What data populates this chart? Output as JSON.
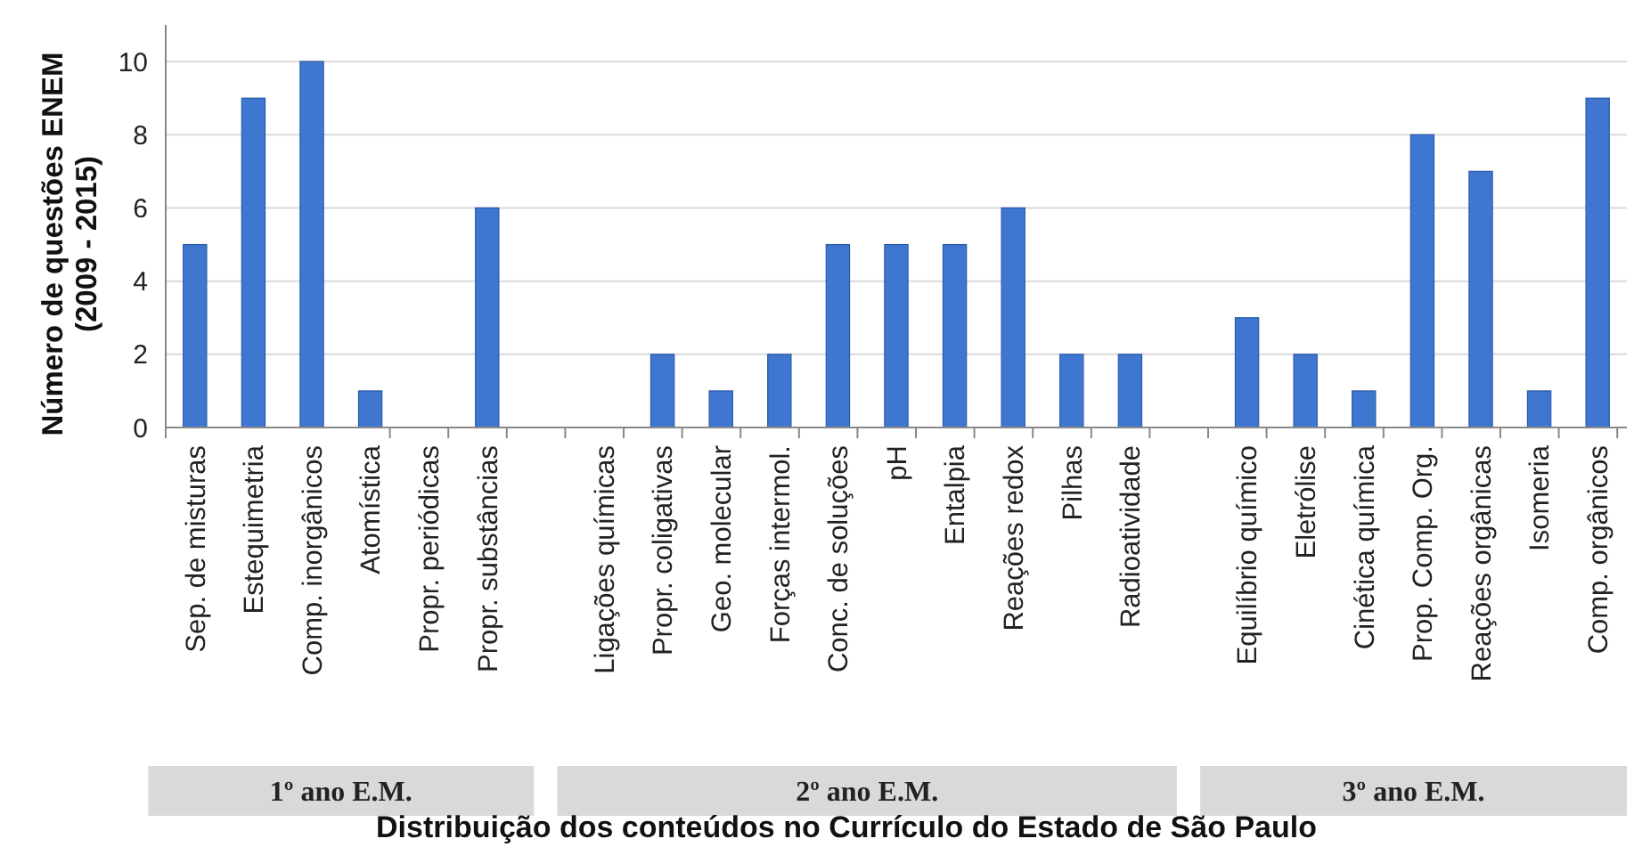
{
  "chart_data": {
    "type": "bar",
    "xlabel": "Distribuição dos conteúdos no Currículo do Estado de São Paulo",
    "ylabel": "Número de questões ENEM\n(2009 - 2015)",
    "categories": [
      "Sep. de misturas",
      "Estequimetria",
      "Comp. inorgânicos",
      "Atomística",
      "Propr. periódicas",
      "Propr. substâncias",
      null,
      "Ligações químicas",
      "Propr. coligativas",
      "Geo. molecular",
      "Forças intermol.",
      "Conc. de soluções",
      "pH",
      "Entalpia",
      "Reações redox",
      "Pilhas",
      "Radioatividade",
      null,
      "Equilíbrio químico",
      "Eletrólise",
      "Cinética química",
      "Prop. Comp. Org.",
      "Reações orgânicas",
      "Isomeria",
      "Comp. orgânicos"
    ],
    "values": [
      5,
      9,
      10,
      1,
      0,
      6,
      null,
      0,
      2,
      1,
      2,
      5,
      5,
      5,
      6,
      2,
      2,
      null,
      3,
      2,
      1,
      8,
      7,
      1,
      9
    ],
    "color": "#3f77d0",
    "ylim": [
      0,
      11
    ],
    "yticks": [
      0,
      2,
      4,
      6,
      8,
      10
    ],
    "grid": "y",
    "annotations": [
      "1º ano E.M.",
      "2º ano E.M.",
      "3º ano E.M."
    ]
  }
}
